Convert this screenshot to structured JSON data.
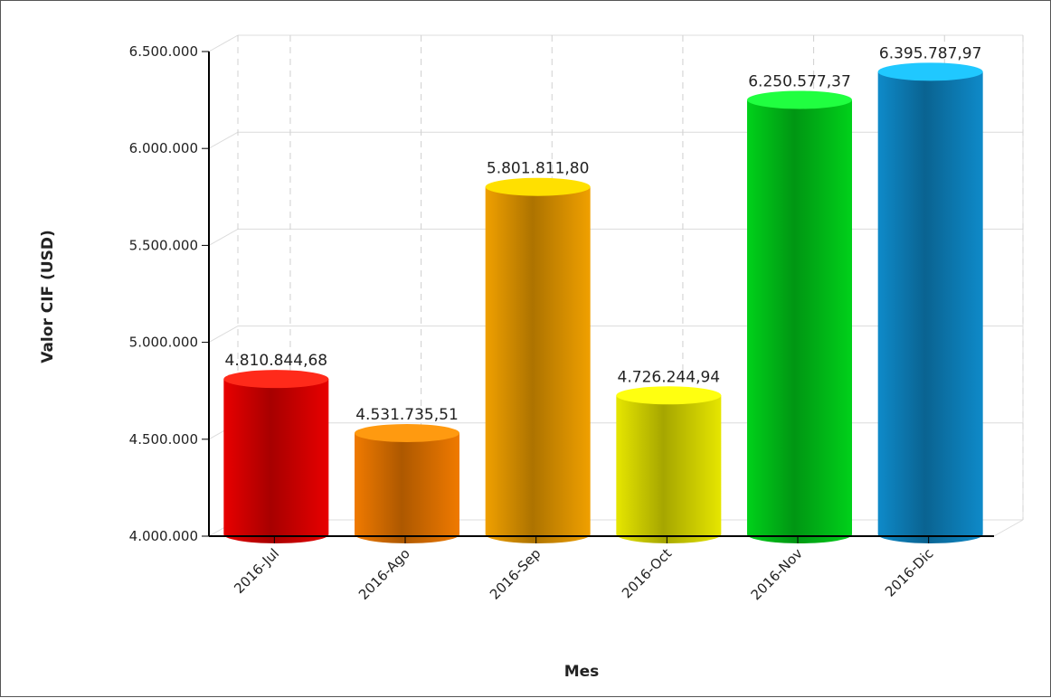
{
  "chart_data": {
    "type": "bar",
    "style": "3d-cylinder",
    "categories": [
      "2016-Jul",
      "2016-Ago",
      "2016-Sep",
      "2016-Oct",
      "2016-Nov",
      "2016-Dic"
    ],
    "values": [
      4810844.68,
      4531735.51,
      5801811.8,
      4726244.94,
      6250577.37,
      6395787.97
    ],
    "value_labels": [
      "4.810.844,68",
      "4.531.735,51",
      "5.801.811,80",
      "4.726.244,94",
      "6.250.577,37",
      "6.395.787,97"
    ],
    "colors": [
      "#e80000",
      "#f07a00",
      "#f0a000",
      "#e6e600",
      "#00d11a",
      "#0e8ac9"
    ],
    "top_colors": [
      "#ff2a1a",
      "#ff9a10",
      "#ffe000",
      "#ffff10",
      "#20ff40",
      "#20c8ff"
    ],
    "xlabel": "Mes",
    "ylabel": "Valor CIF (USD)",
    "ylim": [
      4000000,
      6500000
    ],
    "yticks": [
      4000000,
      4500000,
      5000000,
      5500000,
      6000000,
      6500000
    ],
    "ytick_labels": [
      "4.000.000",
      "4.500.000",
      "5.000.000",
      "5.500.000",
      "6.000.000",
      "6.500.000"
    ],
    "grid": true,
    "legend": "none"
  }
}
